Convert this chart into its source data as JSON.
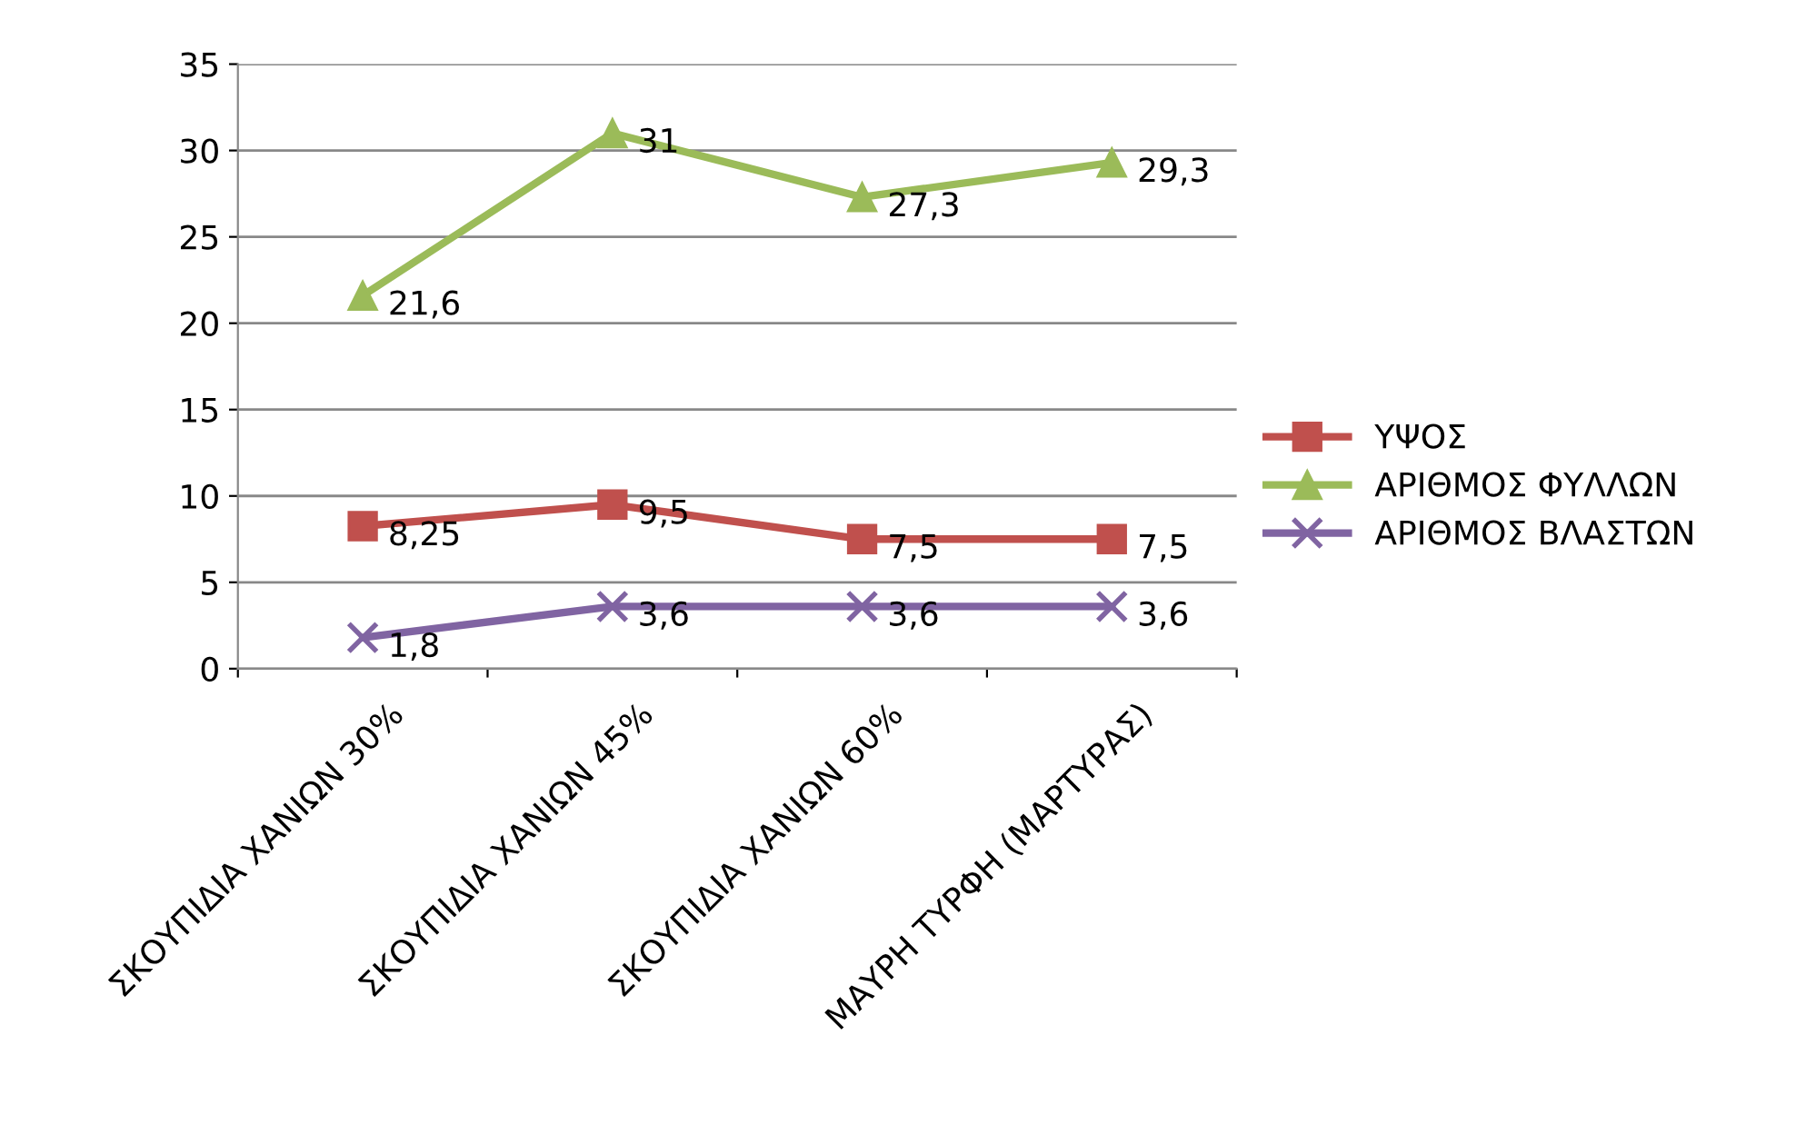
{
  "chart_data": {
    "type": "line",
    "categories": [
      "ΣΚΟΥΠΙΔΙΑ ΧΑΝΙΩΝ 30%",
      "ΣΚΟΥΠΙΔΙΑ ΧΑΝΙΩΝ 45%",
      "ΣΚΟΥΠΙΔΙΑ ΧΑΝΙΩΝ 60%",
      "ΜΑΥΡΗ ΤΥΡΦΗ (ΜΑΡΤΥΡΑΣ)"
    ],
    "series": [
      {
        "name": "ΥΨΟΣ",
        "color": "#c0504d",
        "marker": "square",
        "values": [
          8.25,
          9.5,
          7.5,
          7.5
        ],
        "value_labels": [
          "8,25",
          "9,5",
          "7,5",
          "7,5"
        ]
      },
      {
        "name": "ΑΡΙΘΜΟΣ ΦΥΛΛΩΝ",
        "color": "#9bbb59",
        "marker": "triangle",
        "values": [
          21.6,
          31,
          27.3,
          29.3
        ],
        "value_labels": [
          "21,6",
          "31",
          "27,3",
          "29,3"
        ]
      },
      {
        "name": "ΑΡΙΘΜΟΣ ΒΛΑΣΤΩΝ",
        "color": "#8064a2",
        "marker": "cross",
        "values": [
          1.8,
          3.6,
          3.6,
          3.6
        ],
        "value_labels": [
          "1,8",
          "3,6",
          "3,6",
          "3,6"
        ]
      }
    ],
    "ylim": [
      0,
      35
    ],
    "yticks": [
      0,
      5,
      10,
      15,
      20,
      25,
      30,
      35
    ],
    "grid": "y",
    "legend": "right"
  }
}
